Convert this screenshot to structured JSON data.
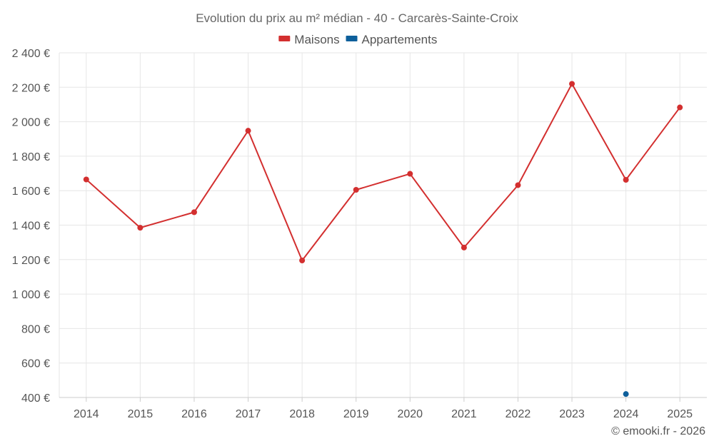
{
  "chart_data": {
    "type": "line",
    "title": "Evolution du prix au m² médian - 40 - Carcarès-Sainte-Croix",
    "categories": [
      "2014",
      "2015",
      "2016",
      "2017",
      "2018",
      "2019",
      "2020",
      "2021",
      "2022",
      "2023",
      "2024",
      "2025"
    ],
    "series": [
      {
        "name": "Maisons",
        "color": "#d32f2f",
        "values": [
          1665,
          1385,
          1475,
          1948,
          1195,
          1605,
          1698,
          1270,
          1632,
          2220,
          1663,
          2083
        ]
      },
      {
        "name": "Appartements",
        "color": "#0d5f9b",
        "values": [
          null,
          null,
          null,
          null,
          null,
          null,
          null,
          null,
          null,
          null,
          420,
          null
        ]
      }
    ],
    "yticks": [
      400,
      600,
      800,
      1000,
      1200,
      1400,
      1600,
      1800,
      2000,
      2200,
      2400
    ],
    "ytick_labels": [
      "400 €",
      "600 €",
      "800 €",
      "1 000 €",
      "1 200 €",
      "1 400 €",
      "1 600 €",
      "1 800 €",
      "2 000 €",
      "2 200 €",
      "2 400 €"
    ],
    "ylim": [
      400,
      2400
    ],
    "xlabel": "",
    "ylabel": "",
    "grid": true,
    "legend_position": "top-center"
  },
  "credit": "© emooki.fr - 2026"
}
